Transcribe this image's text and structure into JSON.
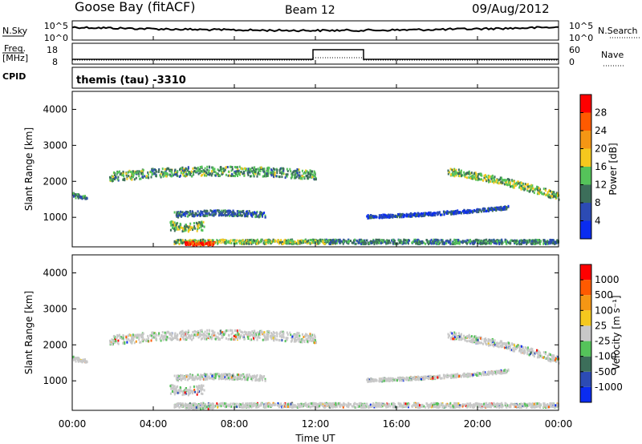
{
  "header": {
    "station": "Goose Bay (fitACF)",
    "beam": "Beam 12",
    "date": "09/Aug/2012"
  },
  "noise_panel": {
    "left_label": "N.Sky",
    "left_ticks": [
      "10^5",
      "10^0"
    ],
    "right_ticks": [
      "10^5",
      "10^0"
    ],
    "right_label": "N.Search"
  },
  "freq_panel": {
    "left_label_top": "Freq.",
    "left_label_unit": "[MHz]",
    "left_ticks": [
      "18",
      "8"
    ],
    "right_ticks": [
      "60",
      "0"
    ],
    "right_label": "Nave",
    "cpid_label": "CPID"
  },
  "cpid": {
    "text": "themis (tau) -3310"
  },
  "colors": {
    "power_scale": [
      "#0a2cf0",
      "#2c4bb4",
      "#3c6e5a",
      "#55c35a",
      "#f5c81e",
      "#f59614",
      "#ff5a00",
      "#ff0000"
    ],
    "velocity_scale": [
      "#0a2cf0",
      "#2c4bb4",
      "#3c6e5a",
      "#55c35a",
      "#c8c8c8",
      "#f5c81e",
      "#f59614",
      "#ff5a00",
      "#ff0000"
    ],
    "ground_scatter": "#c8c8c8"
  },
  "chart_data": [
    {
      "type": "heatmap",
      "name": "power",
      "ylabel": "Slant Range [km]",
      "ylim": [
        180,
        4500
      ],
      "xlim": [
        0,
        24
      ],
      "yticks": [
        "4000",
        "3000",
        "2000",
        "1000"
      ],
      "ytick_values": [
        4000,
        3000,
        2000,
        1000
      ],
      "colorbar_label": "Power [dB]",
      "colorbar_ticks": [
        "28",
        "24",
        "20",
        "16",
        "12",
        "8",
        "4"
      ],
      "colorbar_range": [
        0,
        32
      ],
      "features": [
        {
          "t0": 1.8,
          "t1": 12.0,
          "r_start": 2150,
          "r_mid": 2450,
          "r_end": 2200,
          "width": 260,
          "level": 12
        },
        {
          "t0": 18.5,
          "t1": 24.0,
          "r_start": 2300,
          "r_mid": 2100,
          "r_end": 1600,
          "width": 200,
          "level": 14
        },
        {
          "t0": 5.0,
          "t1": 9.5,
          "r_start": 1100,
          "r_mid": 1200,
          "r_end": 1100,
          "width": 150,
          "level": 8
        },
        {
          "t0": 14.5,
          "t1": 21.5,
          "r_start": 1050,
          "r_mid": 1100,
          "r_end": 1300,
          "width": 90,
          "level": 6
        },
        {
          "t0": 4.8,
          "t1": 6.5,
          "r_start": 800,
          "r_mid": 700,
          "r_end": 800,
          "width": 250,
          "level": 14
        },
        {
          "t0": 0.0,
          "t1": 0.7,
          "r_start": 1650,
          "r_mid": 1600,
          "r_end": 1550,
          "width": 120,
          "level": 8
        },
        {
          "t0": 5.0,
          "t1": 13.0,
          "r_start": 350,
          "r_mid": 350,
          "r_end": 350,
          "width": 120,
          "level": 14
        },
        {
          "t0": 5.5,
          "t1": 7.0,
          "r_start": 300,
          "r_mid": 300,
          "r_end": 300,
          "width": 90,
          "level": 28
        },
        {
          "t0": 12.5,
          "t1": 24.0,
          "r_start": 350,
          "r_mid": 350,
          "r_end": 350,
          "width": 120,
          "level": 10
        }
      ]
    },
    {
      "type": "heatmap",
      "name": "velocity",
      "ylabel": "Slant Range [km]",
      "xlabel": "Time UT",
      "ylim": [
        180,
        4500
      ],
      "xlim": [
        0,
        24
      ],
      "yticks": [
        "4000",
        "3000",
        "2000",
        "1000"
      ],
      "ytick_values": [
        4000,
        3000,
        2000,
        1000
      ],
      "xticks": [
        "00:00",
        "04:00",
        "08:00",
        "12:00",
        "16:00",
        "20:00",
        "00:00"
      ],
      "xtick_values": [
        0,
        4,
        8,
        12,
        16,
        20,
        24
      ],
      "colorbar_label": "Velocity [m s⁻¹]",
      "colorbar_ticks": [
        "1000",
        "500",
        "100",
        "25",
        "-25",
        "-100",
        "-500",
        "-1000"
      ]
    }
  ]
}
